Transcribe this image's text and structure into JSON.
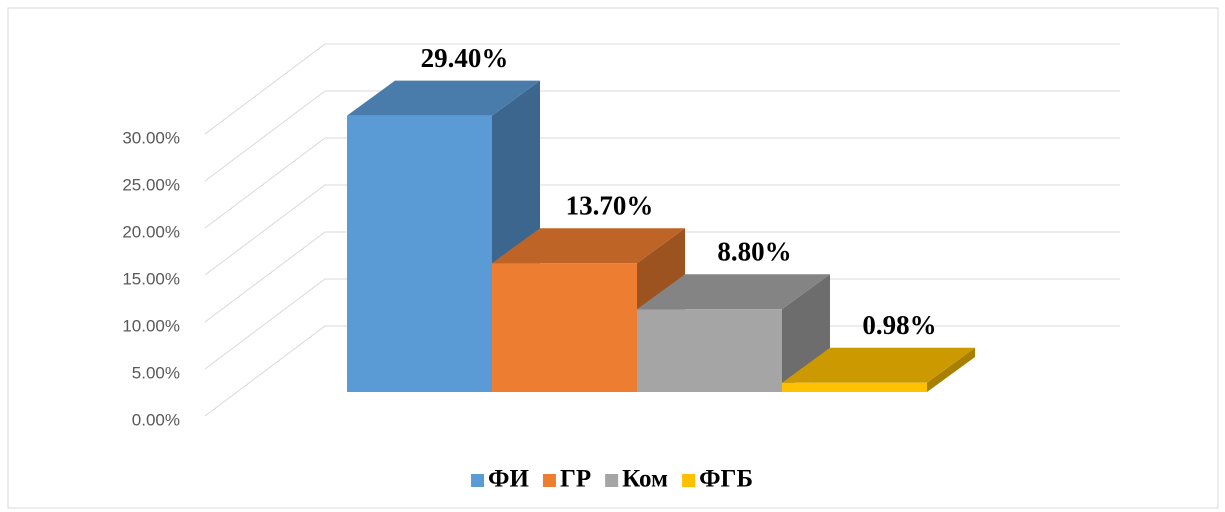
{
  "chart_data": {
    "type": "bar",
    "categories": [
      null
    ],
    "series": [
      {
        "name": "ФИ",
        "color": "#5b9bd5",
        "values": [
          29.4
        ],
        "value_labels": [
          "29.40%"
        ]
      },
      {
        "name": "ГР",
        "color": "#ed7d31",
        "values": [
          13.7
        ],
        "value_labels": [
          "13.70%"
        ]
      },
      {
        "name": "Ком",
        "color": "#a5a5a5",
        "values": [
          8.8
        ],
        "value_labels": [
          "8.80%"
        ]
      },
      {
        "name": "ФГБ",
        "color": "#ffc000",
        "values": [
          0.98
        ],
        "value_labels": [
          "0.98%"
        ]
      }
    ],
    "ylim": [
      0,
      30
    ],
    "yticks": [
      {
        "value": 0,
        "label": "0.00%"
      },
      {
        "value": 5,
        "label": "5.00%"
      },
      {
        "value": 10,
        "label": "10.00%"
      },
      {
        "value": 15,
        "label": "15.00%"
      },
      {
        "value": 20,
        "label": "20.00%"
      },
      {
        "value": 25,
        "label": "25.00%"
      },
      {
        "value": 30,
        "label": "30.00%"
      }
    ],
    "grid": true,
    "legend": "bottom"
  }
}
